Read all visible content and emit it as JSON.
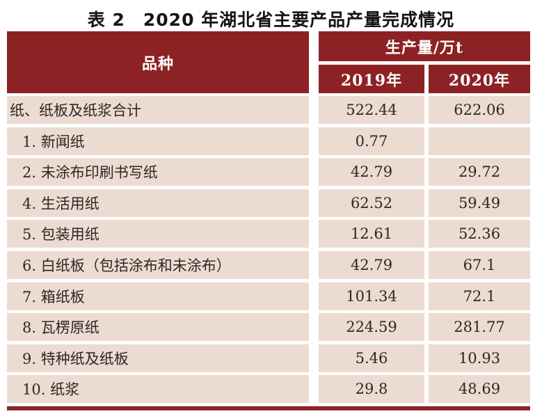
{
  "page": {
    "title": "表 2　2020 年湖北省主要产品产量完成情况"
  },
  "table": {
    "header": {
      "product": "品种",
      "production_group": "生产量/万t",
      "year_2019": "2019年",
      "year_2020": "2020年"
    },
    "rows": [
      {
        "label": "纸、纸板及纸浆合计",
        "indent": false,
        "y2019": "522.44",
        "y2020": "622.06"
      },
      {
        "label": "1. 新闻纸",
        "indent": true,
        "y2019": "0.77",
        "y2020": ""
      },
      {
        "label": "2. 未涂布印刷书写纸",
        "indent": true,
        "y2019": "42.79",
        "y2020": "29.72"
      },
      {
        "label": "4. 生活用纸",
        "indent": true,
        "y2019": "62.52",
        "y2020": "59.49"
      },
      {
        "label": "5. 包装用纸",
        "indent": true,
        "y2019": "12.61",
        "y2020": "52.36"
      },
      {
        "label": "6. 白纸板（包括涂布和未涂布）",
        "indent": true,
        "y2019": "42.79",
        "y2020": "67.1"
      },
      {
        "label": "7. 箱纸板",
        "indent": true,
        "y2019": "101.34",
        "y2020": "72.1"
      },
      {
        "label": "8. 瓦楞原纸",
        "indent": true,
        "y2019": "224.59",
        "y2020": "281.77"
      },
      {
        "label": "9. 特种纸及纸板",
        "indent": true,
        "y2019": "5.46",
        "y2020": "10.93"
      },
      {
        "label": "10. 纸浆",
        "indent": true,
        "y2019": "29.8",
        "y2020": "48.69"
      }
    ]
  },
  "colors": {
    "header_bg": "#8D2224",
    "row_bg": "#ECDBD0",
    "header_text": "#FFFFFF",
    "body_text": "#2B2826",
    "page_bg": "#FFFFFF"
  }
}
